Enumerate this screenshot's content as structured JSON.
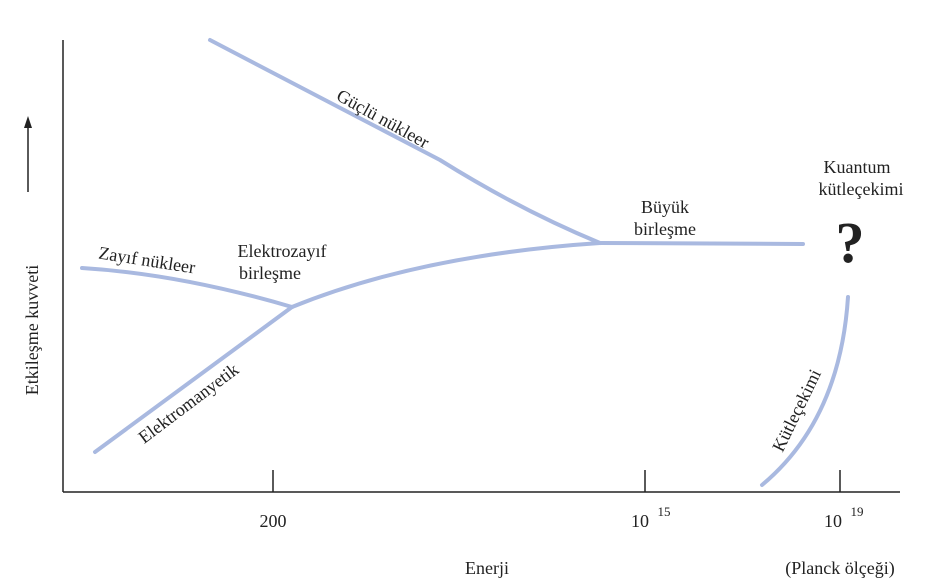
{
  "axes": {
    "y_label": "Etkileşme kuvveti",
    "x_label": "Enerji",
    "x_note": "(Planck ölçeği)",
    "ticks": [
      {
        "text": "200"
      },
      {
        "text": "10",
        "sup": "15"
      },
      {
        "text": "10",
        "sup": "19"
      }
    ]
  },
  "curves": {
    "strong": "Güçlü nükleer",
    "weak": "Zayıf nükleer",
    "em": "Elektromanyetik",
    "gravity": "Kütleçekimi"
  },
  "points": {
    "electroweak": [
      "Elektrozayıf",
      "birleşme"
    ],
    "grand": [
      "Büyük",
      "birleşme"
    ],
    "quantum": [
      "Kuantum",
      "kütleçekimi"
    ],
    "question": "?"
  }
}
